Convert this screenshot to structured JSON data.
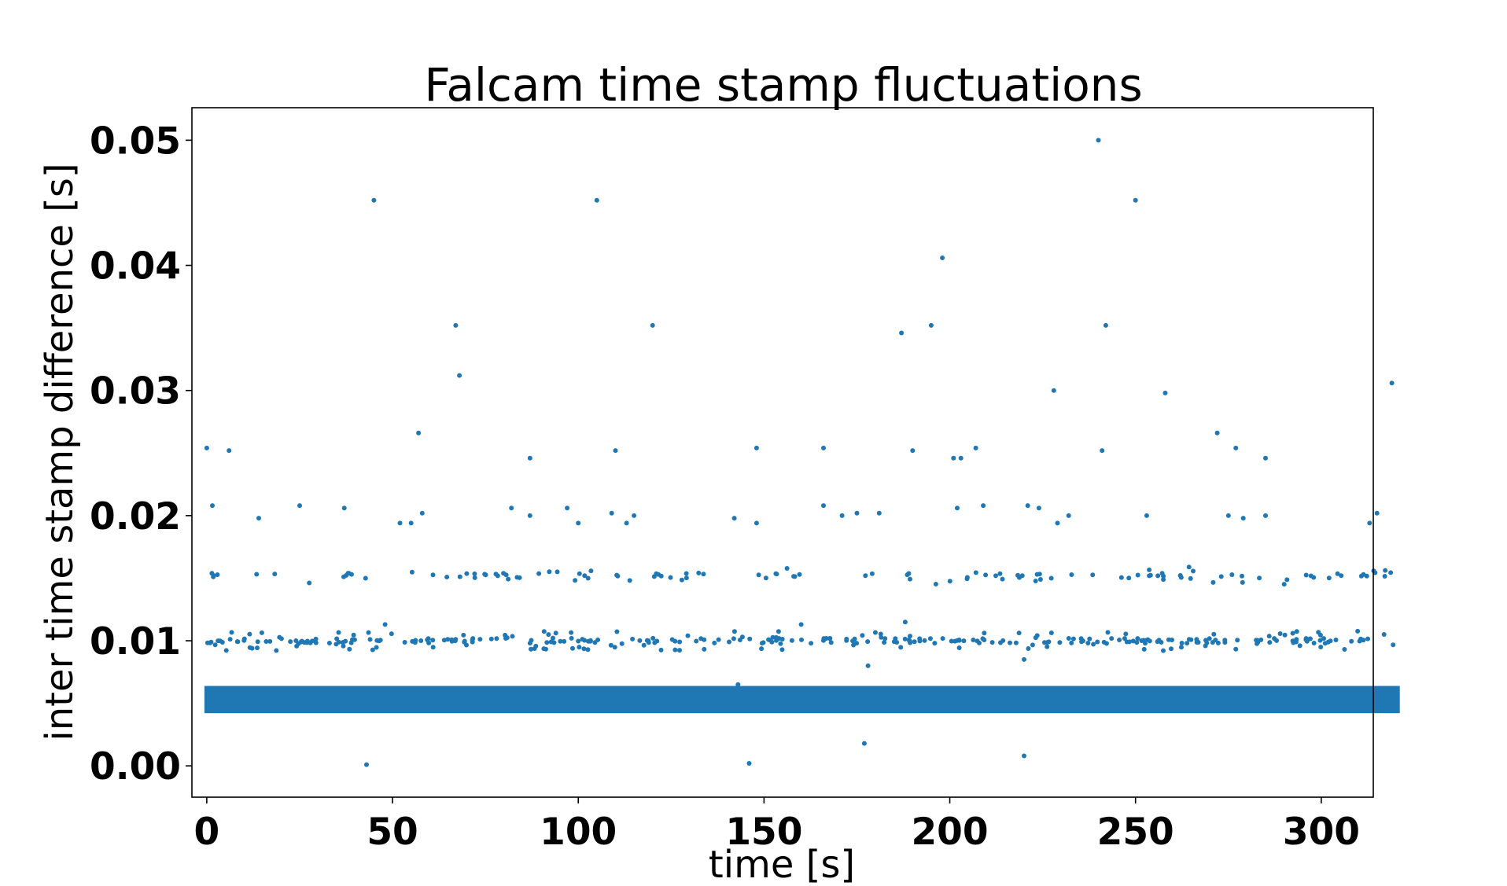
{
  "chart_data": {
    "type": "scatter",
    "title": "Falcam time stamp fluctuations",
    "xlabel": "time [s]",
    "ylabel": "inter time stamp difference [s]",
    "xlim": [
      -4,
      314
    ],
    "ylim": [
      -0.0025,
      0.0526
    ],
    "xticks": [
      {
        "value": 0,
        "label": "0"
      },
      {
        "value": 50,
        "label": "50"
      },
      {
        "value": 100,
        "label": "100"
      },
      {
        "value": 150,
        "label": "150"
      },
      {
        "value": 200,
        "label": "200"
      },
      {
        "value": 250,
        "label": "250"
      },
      {
        "value": 300,
        "label": "300"
      }
    ],
    "yticks": [
      {
        "value": 0.0,
        "label": "0.00"
      },
      {
        "value": 0.01,
        "label": "0.01"
      },
      {
        "value": 0.02,
        "label": "0.02"
      },
      {
        "value": 0.03,
        "label": "0.03"
      },
      {
        "value": 0.04,
        "label": "0.04"
      },
      {
        "value": 0.05,
        "label": "0.05"
      }
    ],
    "grid": false,
    "marker_color": "#1f77b4",
    "dense_band": {
      "x": [
        0,
        320.5
      ],
      "y": [
        0.0044,
        0.0062
      ]
    },
    "points": [
      [
        0,
        0.0254
      ],
      [
        1.5,
        0.0208
      ],
      [
        6,
        0.0252
      ],
      [
        14,
        0.0198
      ],
      [
        25,
        0.0208
      ],
      [
        37,
        0.0206
      ],
      [
        43,
        0.0001
      ],
      [
        45,
        0.0452
      ],
      [
        52,
        0.0194
      ],
      [
        55,
        0.0194
      ],
      [
        58,
        0.0202
      ],
      [
        57,
        0.0266
      ],
      [
        67,
        0.0352
      ],
      [
        68,
        0.0312
      ],
      [
        82,
        0.0206
      ],
      [
        87,
        0.0246
      ],
      [
        87,
        0.02
      ],
      [
        97,
        0.0206
      ],
      [
        100,
        0.0194
      ],
      [
        105,
        0.0452
      ],
      [
        109,
        0.0202
      ],
      [
        110,
        0.0252
      ],
      [
        113,
        0.0194
      ],
      [
        115,
        0.02
      ],
      [
        120,
        0.0352
      ],
      [
        142,
        0.0198
      ],
      [
        146,
        0.0002
      ],
      [
        148,
        0.0254
      ],
      [
        148,
        0.0194
      ],
      [
        166,
        0.0254
      ],
      [
        166,
        0.0208
      ],
      [
        171,
        0.02
      ],
      [
        175,
        0.0202
      ],
      [
        177,
        0.0018
      ],
      [
        181,
        0.0202
      ],
      [
        187,
        0.0346
      ],
      [
        190,
        0.0252
      ],
      [
        195,
        0.0352
      ],
      [
        198,
        0.0406
      ],
      [
        201,
        0.0246
      ],
      [
        203,
        0.0246
      ],
      [
        202,
        0.0206
      ],
      [
        207,
        0.0254
      ],
      [
        209,
        0.0208
      ],
      [
        220,
        0.0008
      ],
      [
        221,
        0.0208
      ],
      [
        224,
        0.0206
      ],
      [
        228,
        0.03
      ],
      [
        229,
        0.0194
      ],
      [
        232,
        0.02
      ],
      [
        240,
        0.05
      ],
      [
        241,
        0.0252
      ],
      [
        242,
        0.0352
      ],
      [
        250,
        0.0452
      ],
      [
        253,
        0.02
      ],
      [
        258,
        0.0298
      ],
      [
        272,
        0.0266
      ],
      [
        275,
        0.02
      ],
      [
        277,
        0.0254
      ],
      [
        279,
        0.0198
      ],
      [
        285,
        0.0246
      ],
      [
        285,
        0.02
      ],
      [
        313,
        0.0194
      ],
      [
        315,
        0.0202
      ],
      [
        319,
        0.0306
      ],
      [
        178,
        0.008
      ],
      [
        220,
        0.0085
      ],
      [
        143,
        0.0065
      ],
      [
        48,
        0.0113
      ],
      [
        160,
        0.0113
      ],
      [
        188,
        0.0115
      ]
    ],
    "bands": [
      {
        "y_center": 0.0152,
        "spread": 0.0007,
        "count": 120
      },
      {
        "y_center": 0.01,
        "spread": 0.0008,
        "count": 330
      }
    ]
  }
}
